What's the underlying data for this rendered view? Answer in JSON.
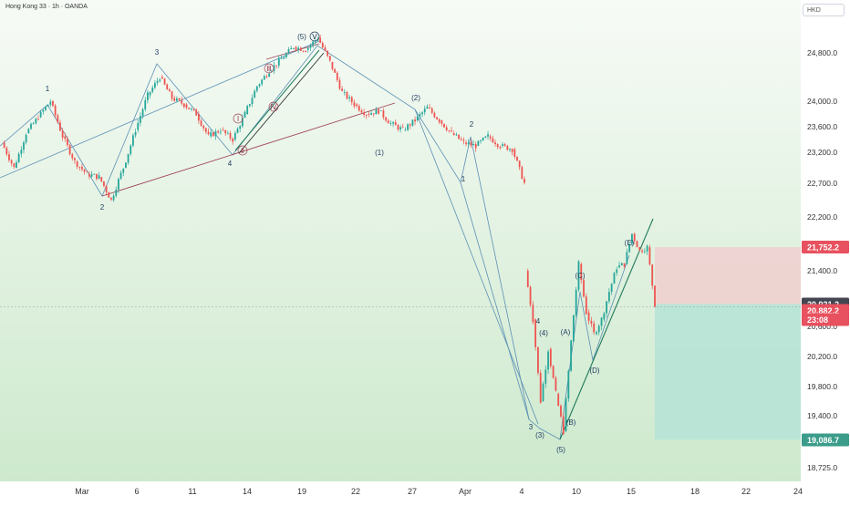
{
  "header": {
    "symbol_title": "Hong Kong 33 · 1h · OANDA",
    "currency": "HKD"
  },
  "colors": {
    "bull": "#26a69a",
    "bear": "#ef5350",
    "wave_blue": "#5b8fb4",
    "trend_red": "#a0445a",
    "wedge_line": "#1f7a5c",
    "stop_zone": "#f0cfcf",
    "target_zone": "#b7e3d6",
    "bg_top": "#f7fbf6",
    "bg_bottom": "#cde9cd"
  },
  "chart_data": {
    "type": "candlestick",
    "symbol": "Hong Kong 33",
    "timeframe": "1h",
    "source": "OANDA",
    "currency": "HKD",
    "ylim": [
      18650,
      25300
    ],
    "y_ticks": [
      "24,800.0",
      "24,000.0",
      "23,600.0",
      "23,200.0",
      "22,700.0",
      "22,200.0",
      "21,400.0",
      "20,600.0",
      "20,200.0",
      "19,800.0",
      "19,400.0",
      "18,725.0"
    ],
    "x_ticks": [
      "Mar",
      "6",
      "11",
      "14",
      "19",
      "22",
      "27",
      "Apr",
      "4",
      "10",
      "15",
      "18",
      "22",
      "24"
    ],
    "price_labels": [
      {
        "text": "21,752.2",
        "kind": "stop"
      },
      {
        "text": "20,921.2",
        "kind": "entry"
      },
      {
        "text": "20,882.2",
        "kind": "last"
      },
      {
        "text": "23:08",
        "kind": "countdown"
      },
      {
        "text": "19,086.7",
        "kind": "target"
      }
    ],
    "position": {
      "entry": 20921.2,
      "stop": 21752.2,
      "target": 19086.7
    },
    "price_path": [
      [
        "Feb27",
        23350
      ],
      [
        "Feb28",
        22950
      ],
      [
        "Feb29",
        23500
      ],
      [
        "Mar1",
        23750
      ],
      [
        "Mar2",
        24000
      ],
      [
        "Mar3",
        23450
      ],
      [
        "Mar4",
        23050
      ],
      [
        "Mar4b",
        22850
      ],
      [
        "Mar5",
        22800
      ],
      [
        "Mar6",
        22450
      ],
      [
        "Mar6b",
        22950
      ],
      [
        "Mar7",
        23550
      ],
      [
        "Mar8",
        24100
      ],
      [
        "Mar9",
        24400
      ],
      [
        "Mar9b",
        24050
      ],
      [
        "Mar10",
        23950
      ],
      [
        "Mar11",
        23800
      ],
      [
        "Mar11b",
        23450
      ],
      [
        "Mar12",
        23550
      ],
      [
        "Mar13",
        23400
      ],
      [
        "Mar14",
        23800
      ],
      [
        "Mar14b",
        24250
      ],
      [
        "Mar15",
        24500
      ],
      [
        "Mar16",
        24700
      ],
      [
        "Mar17",
        24900
      ],
      [
        "Mar18",
        24850
      ],
      [
        "Mar19",
        25050
      ],
      [
        "Mar19b",
        24650
      ],
      [
        "Mar20",
        24150
      ],
      [
        "Mar21",
        23950
      ],
      [
        "Mar22",
        23800
      ],
      [
        "Mar23",
        23850
      ],
      [
        "Mar24",
        23650
      ],
      [
        "Mar25",
        23550
      ],
      [
        "Mar26",
        23700
      ],
      [
        "Mar27",
        23900
      ],
      [
        "Mar27b",
        23700
      ],
      [
        "Mar28",
        23500
      ],
      [
        "Mar29",
        23350
      ],
      [
        "Mar30",
        23300
      ],
      [
        "Apr1",
        23450
      ],
      [
        "Apr1b",
        23300
      ],
      [
        "Apr2",
        23250
      ],
      [
        "Apr3",
        22700
      ]
    ],
    "price_path_2": [
      [
        "Apr4",
        21400
      ],
      [
        "Apr5",
        20700
      ],
      [
        "Apr6",
        19600
      ],
      [
        "Apr7",
        20300
      ],
      [
        "Apr7b",
        19700
      ],
      [
        "Apr8",
        19200
      ],
      [
        "Apr9",
        20400
      ],
      [
        "Apr10",
        21500
      ],
      [
        "Apr10b",
        20800
      ],
      [
        "Apr11",
        20500
      ],
      [
        "Apr11b",
        20700
      ],
      [
        "Apr12",
        21100
      ],
      [
        "Apr13",
        21450
      ],
      [
        "Apr14",
        21500
      ],
      [
        "Apr15",
        21950
      ],
      [
        "Apr15b",
        21700
      ],
      [
        "Apr16",
        21750
      ],
      [
        "Apr16b",
        20921
      ]
    ],
    "wave_labels": [
      {
        "text": "1",
        "style": "plain"
      },
      {
        "text": "2",
        "style": "plain"
      },
      {
        "text": "3",
        "style": "plain"
      },
      {
        "text": "4",
        "style": "plain"
      },
      {
        "text": "(5)",
        "style": "plain"
      },
      {
        "text": "Ⅴ",
        "style": "circled"
      },
      {
        "text": "Ⅰ",
        "style": "circled-red"
      },
      {
        "text": "Ⅱ",
        "style": "circled-red"
      },
      {
        "text": "Ⅲ",
        "style": "circled-red"
      },
      {
        "text": "Ⅳ",
        "style": "circled-red"
      },
      {
        "text": "(1)",
        "style": "plain"
      },
      {
        "text": "(2)",
        "style": "plain"
      },
      {
        "text": "1",
        "style": "plain"
      },
      {
        "text": "2",
        "style": "plain"
      },
      {
        "text": "3",
        "style": "plain"
      },
      {
        "text": "4",
        "style": "plain"
      },
      {
        "text": "(3)",
        "style": "plain"
      },
      {
        "text": "(4)",
        "style": "plain"
      },
      {
        "text": "(5)",
        "style": "plain"
      },
      {
        "text": "(A)",
        "style": "plain"
      },
      {
        "text": "(B)",
        "style": "plain"
      },
      {
        "text": "(C)",
        "style": "plain"
      },
      {
        "text": "(D)",
        "style": "plain"
      },
      {
        "text": "(E)",
        "style": "plain"
      }
    ]
  }
}
